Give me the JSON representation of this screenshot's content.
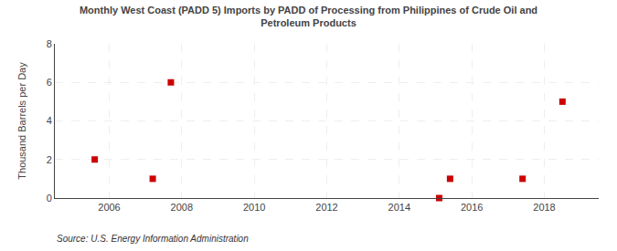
{
  "chart_data": {
    "type": "scatter",
    "title": "Monthly West Coast (PADD 5) Imports by PADD of Processing from Philippines of Crude Oil and\nPetroleum Products",
    "ylabel": "Thousand Barrels per Day",
    "source": "Source: U.S. Energy Information Administration",
    "x": [
      2005.6,
      2007.2,
      2007.7,
      2015.1,
      2015.4,
      2017.4,
      2018.5
    ],
    "values": [
      2,
      1,
      6,
      0,
      1,
      1,
      5
    ],
    "color": "#cc0000",
    "marker": "square",
    "xlim": [
      2004.5,
      2019.5
    ],
    "xticks": [
      2006,
      2008,
      2010,
      2012,
      2014,
      2016,
      2018
    ],
    "ylim": [
      0,
      8
    ],
    "yticks": [
      0,
      2,
      4,
      6,
      8
    ],
    "grid": true
  }
}
